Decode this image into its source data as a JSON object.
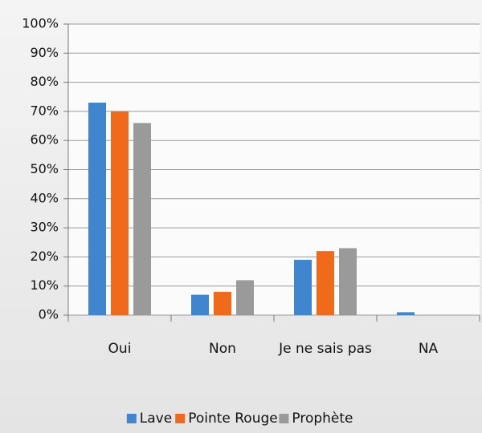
{
  "chart_data": {
    "type": "bar",
    "categories": [
      "Oui",
      "Non",
      "Je ne sais pas",
      "NA"
    ],
    "series": [
      {
        "name": "Lave",
        "color": "#3f86cf",
        "values": [
          73,
          7,
          19,
          1
        ]
      },
      {
        "name": "Pointe Rouge",
        "color": "#f06a1c",
        "values": [
          70,
          8,
          22,
          0
        ]
      },
      {
        "name": "Prophète",
        "color": "#9a9a9a",
        "values": [
          66,
          12,
          23,
          0
        ]
      }
    ],
    "ylim": [
      0,
      100
    ],
    "yticks": [
      {
        "value": 0,
        "label": "0%"
      },
      {
        "value": 10,
        "label": "10%"
      },
      {
        "value": 20,
        "label": "20%"
      },
      {
        "value": 30,
        "label": "30%"
      },
      {
        "value": 40,
        "label": "40%"
      },
      {
        "value": 50,
        "label": "50%"
      },
      {
        "value": 60,
        "label": "60%"
      },
      {
        "value": 70,
        "label": "70%"
      },
      {
        "value": 80,
        "label": "80%"
      },
      {
        "value": 90,
        "label": "90%"
      },
      {
        "value": 100,
        "label": "100%"
      }
    ],
    "grid": true,
    "legend": "bottom"
  }
}
